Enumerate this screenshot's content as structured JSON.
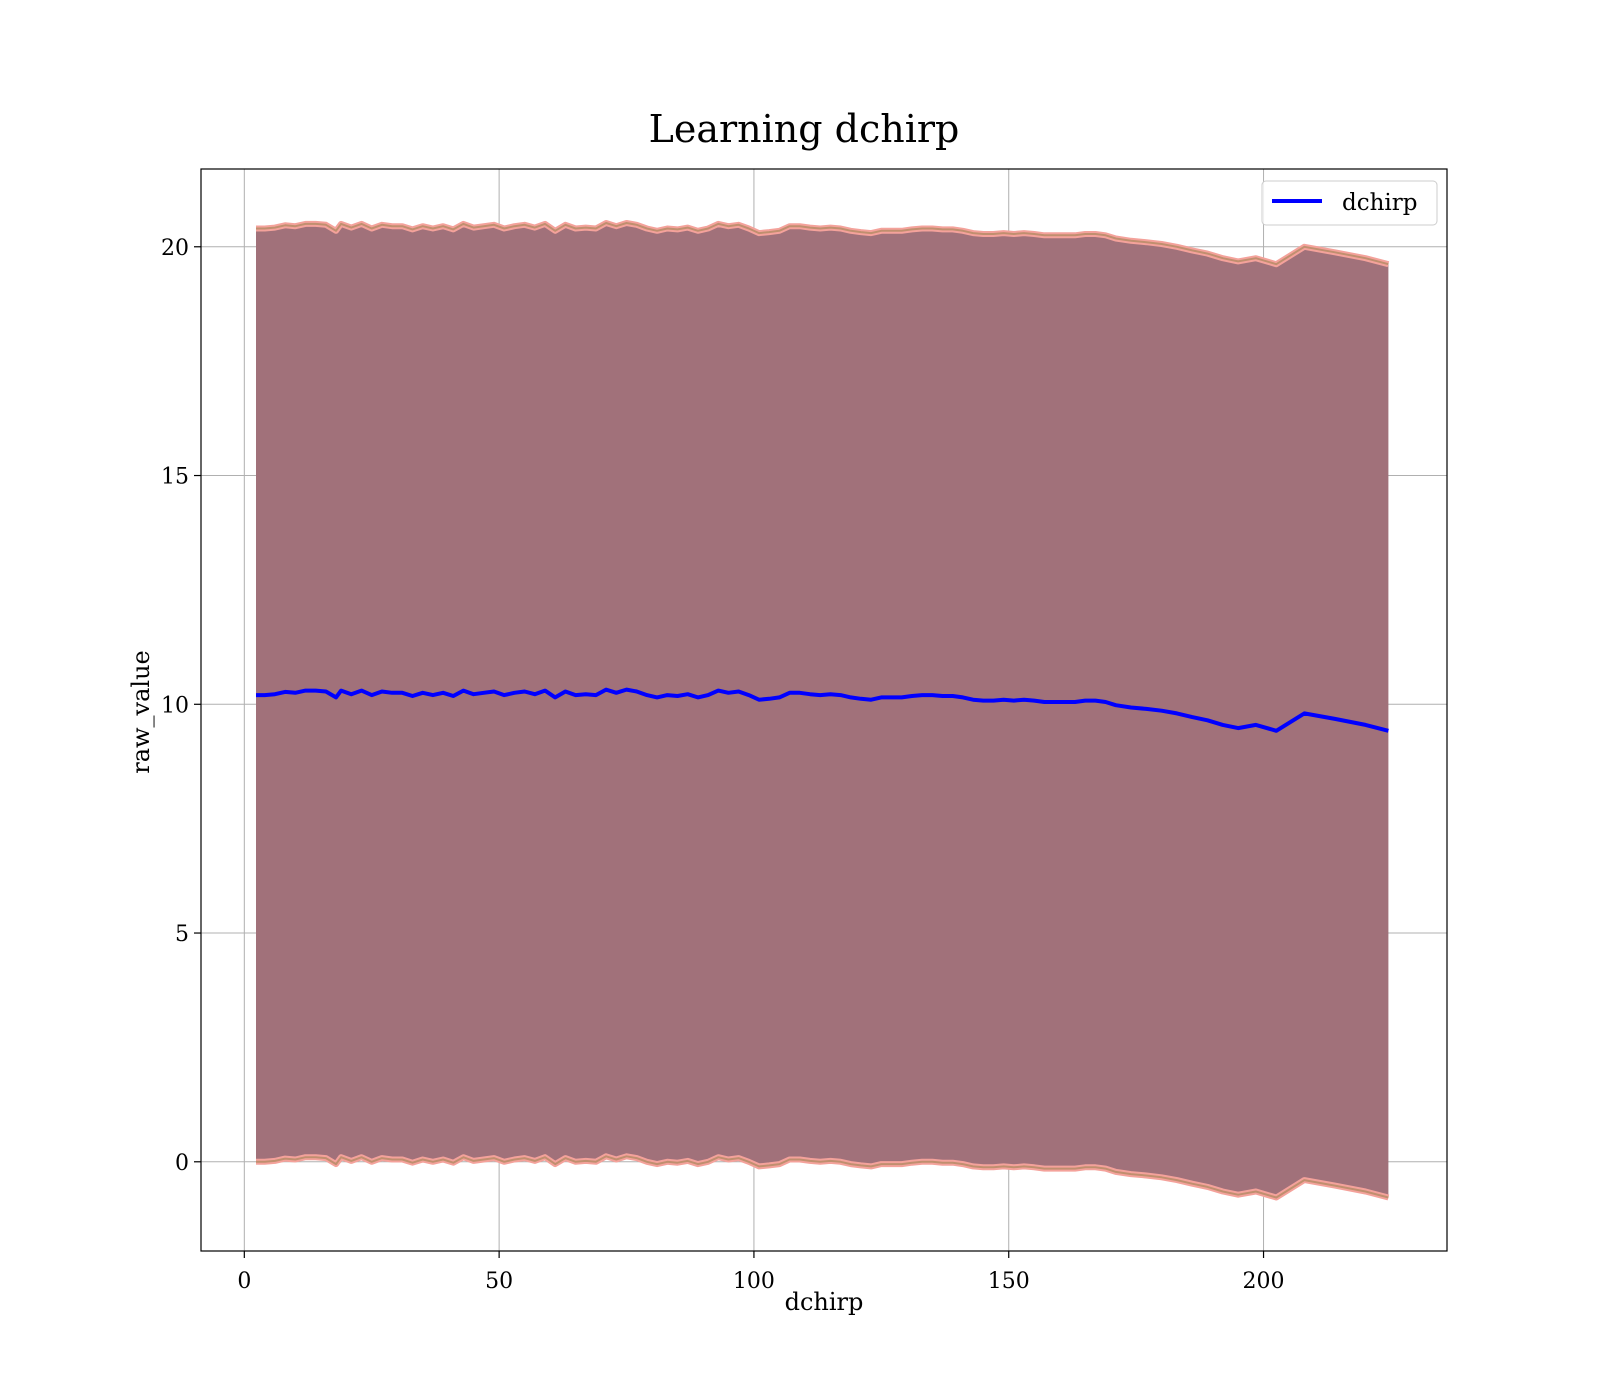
{
  "chart_data": {
    "type": "line",
    "title": "Learning dchirp",
    "xlabel": "dchirp",
    "ylabel": "raw_value",
    "xlim": [
      -8.5,
      236
    ],
    "ylim": [
      -1.95,
      21.7
    ],
    "xticks": [
      0,
      50,
      100,
      150,
      200
    ],
    "yticks": [
      0,
      5,
      10,
      15,
      20
    ],
    "grid": true,
    "legend": {
      "position": "top-right",
      "entries": [
        "dchirp"
      ]
    },
    "colors": {
      "line": "#0000ff",
      "band_fill": "#a1717a",
      "band_edge_outer": "#f4a29b",
      "band_edge_inner": "#c08f6f",
      "grid": "#b0b0b0"
    },
    "series": [
      {
        "name": "dchirp",
        "x": [
          2.3,
          4,
          6,
          8,
          10,
          12,
          14,
          16,
          18,
          19,
          21,
          23,
          25,
          27,
          29,
          31,
          33,
          35,
          37,
          39,
          41,
          43,
          45,
          47,
          49,
          51,
          53,
          55,
          57,
          59,
          61,
          63,
          65,
          67,
          69,
          71,
          73,
          75,
          77,
          79,
          81,
          83,
          85,
          87,
          89,
          91,
          93,
          95,
          97,
          99,
          101,
          103,
          105,
          107,
          109,
          111,
          113,
          115,
          117,
          119,
          121,
          123,
          125,
          127,
          129,
          131,
          133,
          135,
          137,
          139,
          141,
          143,
          145,
          147,
          149,
          151,
          153,
          155,
          157,
          159,
          161,
          163,
          165,
          167,
          169,
          171,
          174,
          177,
          180,
          183,
          186,
          189,
          192,
          195,
          198.5,
          202.5,
          208,
          214,
          220,
          224.5
        ],
        "mean": [
          10.2,
          10.2,
          10.22,
          10.27,
          10.25,
          10.3,
          10.3,
          10.28,
          10.15,
          10.3,
          10.22,
          10.3,
          10.2,
          10.28,
          10.25,
          10.25,
          10.18,
          10.25,
          10.2,
          10.25,
          10.18,
          10.3,
          10.22,
          10.25,
          10.28,
          10.2,
          10.25,
          10.28,
          10.22,
          10.3,
          10.15,
          10.28,
          10.2,
          10.22,
          10.2,
          10.32,
          10.25,
          10.32,
          10.28,
          10.2,
          10.15,
          10.2,
          10.18,
          10.22,
          10.15,
          10.2,
          10.3,
          10.25,
          10.28,
          10.2,
          10.1,
          10.12,
          10.15,
          10.25,
          10.25,
          10.22,
          10.2,
          10.22,
          10.2,
          10.15,
          10.12,
          10.1,
          10.15,
          10.15,
          10.15,
          10.18,
          10.2,
          10.2,
          10.18,
          10.18,
          10.15,
          10.1,
          10.08,
          10.08,
          10.1,
          10.08,
          10.1,
          10.08,
          10.05,
          10.05,
          10.05,
          10.05,
          10.08,
          10.08,
          10.05,
          9.98,
          9.93,
          9.9,
          9.86,
          9.8,
          9.72,
          9.65,
          9.55,
          9.48,
          9.55,
          9.42,
          9.8,
          9.68,
          9.55,
          9.42
        ],
        "band_half_width": 10.2
      }
    ]
  }
}
